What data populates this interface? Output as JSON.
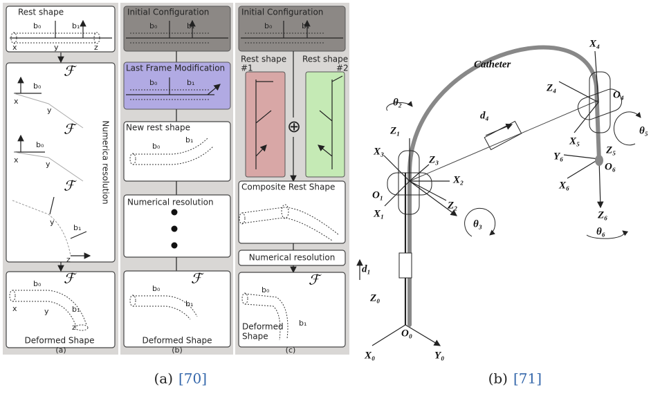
{
  "figure_a": {
    "column_a": {
      "rest_shape": "Rest shape",
      "force": "ℱ",
      "side_label": "Numerica resolution",
      "deformed_shape": "Deformed Shape",
      "label": "(a)"
    },
    "column_b": {
      "initial_configuration": "Initial Configuration",
      "last_frame_modification": "Last Frame Modification",
      "new_rest_shape": "New rest shape",
      "numerical_resolution": "Numerical resolution",
      "force": "ℱ",
      "deformed_shape": "Deformed Shape",
      "label": "(b)"
    },
    "column_c": {
      "initial_configuration": "Initial Configuration",
      "rest_shape_1": [
        "Rest shape",
        "#1"
      ],
      "rest_shape_2": [
        "Rest shape",
        "#2"
      ],
      "combine": "⊕",
      "composite_rest_shape": "Composite Rest Shape",
      "numerical_resolution": "Numerical resolution",
      "force": "ℱ",
      "deformed_shape": [
        "Deformed",
        "Shape"
      ],
      "label": "(c)"
    },
    "axis_labels": {
      "b0": "b₀",
      "b1": "b₁",
      "x": "x",
      "y": "y",
      "z": "z"
    }
  },
  "figure_b": {
    "catheter": "Catheter",
    "X4": "X₄",
    "Z4": "Z₄",
    "O4": "O₄",
    "theta5": "θ₅",
    "X5": "X₅",
    "Z5": "Z₅",
    "Y6": "Y₆",
    "O6": "O₆",
    "X6": "X₆",
    "Z6": "Z₆",
    "theta6": "θ₆",
    "theta2": "θ₂",
    "d4": "d₄",
    "Z1": "Z₁",
    "X3": "X₃",
    "Z3": "Z₃",
    "X2": "X₂",
    "O1": "O₁",
    "Z2": "Z₂",
    "X1": "X₁",
    "theta3": "θ₃",
    "d1": "d₁",
    "Z0": "Z₀",
    "O0": "O₀",
    "X0": "X₀",
    "Y0": "Y₀"
  },
  "captions": {
    "a_label": "(a)",
    "a_ref": "[70]",
    "b_label": "(b)",
    "b_ref": "[71]"
  }
}
